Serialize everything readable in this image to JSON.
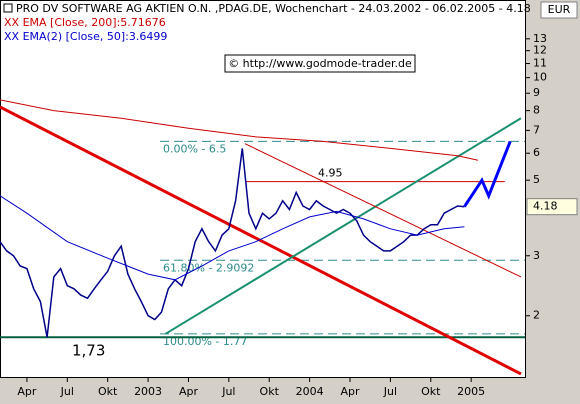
{
  "chart_data": {
    "type": "line",
    "title": "PRO DV SOFTWARE AG AKTIEN O.N. ,PDAG.DE, Wochenchart - 24.03.2002 - 06.02.2005 - 4.18",
    "currency": "EUR",
    "watermark": "© http://www.godmode-trader.de",
    "log_scale": true,
    "xlim": [
      1,
      40
    ],
    "ylim": [
      1.34,
      16.9
    ],
    "xticks": [
      {
        "value": 3,
        "label": "Apr"
      },
      {
        "value": 6,
        "label": "Jul"
      },
      {
        "value": 9,
        "label": "Okt"
      },
      {
        "value": 12,
        "label": "2003"
      },
      {
        "value": 15,
        "label": "Apr"
      },
      {
        "value": 18,
        "label": "Jul"
      },
      {
        "value": 21,
        "label": "Okt"
      },
      {
        "value": 24,
        "label": "2004"
      },
      {
        "value": 27,
        "label": "Apr"
      },
      {
        "value": 30,
        "label": "Jul"
      },
      {
        "value": 33,
        "label": "Okt"
      },
      {
        "value": 36,
        "label": "2005"
      }
    ],
    "yticks": [
      2,
      3,
      5,
      6,
      7,
      8,
      9,
      10,
      11,
      12,
      13
    ],
    "last_price": 4.18,
    "series": [
      {
        "color": "#00008b",
        "x": [
          1,
          1.5,
          2,
          2.5,
          3,
          3.5,
          4,
          4.5,
          5,
          5.5,
          6,
          6.5,
          7,
          7.5,
          8,
          8.5,
          9,
          9.5,
          10,
          10.5,
          11,
          11.5,
          12,
          12.5,
          13,
          13.5,
          14,
          14.5,
          15,
          15.5,
          16,
          16.5,
          17,
          17.5,
          18,
          18.5,
          19,
          19.5,
          20,
          20.5,
          21,
          21.5,
          22,
          22.5,
          23,
          23.5,
          24,
          24.5,
          25,
          25.5,
          26,
          26.5,
          27,
          27.5,
          28,
          28.5,
          29,
          29.5,
          30,
          30.5,
          31,
          31.5,
          32,
          32.5,
          33,
          33.5,
          34,
          34.5,
          35,
          35.5
        ],
        "values": [
          3.3,
          3.1,
          3.0,
          2.8,
          2.75,
          2.4,
          2.2,
          1.73,
          2.6,
          2.75,
          2.45,
          2.4,
          2.3,
          2.25,
          2.4,
          2.55,
          2.7,
          3.0,
          3.2,
          2.65,
          2.4,
          2.2,
          2.0,
          1.95,
          2.05,
          2.4,
          2.55,
          2.45,
          2.75,
          3.3,
          3.6,
          3.3,
          3.1,
          3.45,
          3.6,
          4.35,
          6.2,
          4.0,
          3.6,
          4.0,
          3.85,
          4.0,
          4.35,
          4.1,
          4.6,
          4.2,
          4.1,
          4.35,
          4.2,
          4.1,
          4.0,
          4.1,
          4.0,
          3.8,
          3.45,
          3.3,
          3.2,
          3.1,
          3.1,
          3.2,
          3.3,
          3.45,
          3.45,
          3.6,
          3.7,
          3.7,
          4.0,
          4.1,
          4.2,
          4.18
        ]
      },
      {
        "name": "XX EMA [Close, 200]:5.71676",
        "color": "#cc0000",
        "x": [
          1,
          5,
          10,
          15,
          20,
          25,
          30,
          35,
          36.5
        ],
        "values": [
          8.6,
          8.0,
          7.6,
          7.1,
          6.7,
          6.5,
          6.2,
          5.9,
          5.72
        ]
      },
      {
        "name": "XX EMA(2) [Close, 50]:3.6499",
        "color": "#0000cc",
        "x": [
          1,
          3,
          6,
          9,
          12,
          14,
          16,
          18,
          20,
          22,
          24,
          26,
          28,
          30,
          32,
          34,
          35.5
        ],
        "values": [
          4.5,
          4.0,
          3.3,
          2.95,
          2.65,
          2.55,
          2.8,
          3.1,
          3.3,
          3.6,
          3.9,
          4.05,
          3.85,
          3.6,
          3.45,
          3.6,
          3.65
        ]
      },
      {
        "color": "#0000ff",
        "x": [
          35.5,
          36.8,
          37.3,
          38.9
        ],
        "values": [
          4.18,
          5.0,
          4.5,
          6.5
        ]
      }
    ],
    "fib_levels": [
      {
        "value": 6.5,
        "label": "0.00% - 6.5"
      },
      {
        "value": 2.9092,
        "label": "61.80% - 2.9092"
      },
      {
        "value": 1.77,
        "label": "100.00% - 1.77"
      }
    ],
    "fib_color": "#2e8b8b",
    "resistance": {
      "value": 4.95,
      "color": "#cc0000",
      "x": [
        19.2,
        38.5
      ]
    },
    "support": {
      "value": 1.73,
      "label": "1,73",
      "color": "#006040"
    },
    "trend_lines": [
      {
        "color": "#e00000",
        "width": 3,
        "x": [
          1,
          39.7
        ],
        "y": [
          8.2,
          1.35
        ]
      },
      {
        "color": "#1a9070",
        "width": 2,
        "x": [
          13.3,
          39.7
        ],
        "y": [
          1.77,
          7.6
        ]
      },
      {
        "color": "#cc0000",
        "width": 1,
        "x": [
          19.2,
          39.7
        ],
        "y": [
          6.4,
          2.6
        ]
      }
    ]
  }
}
